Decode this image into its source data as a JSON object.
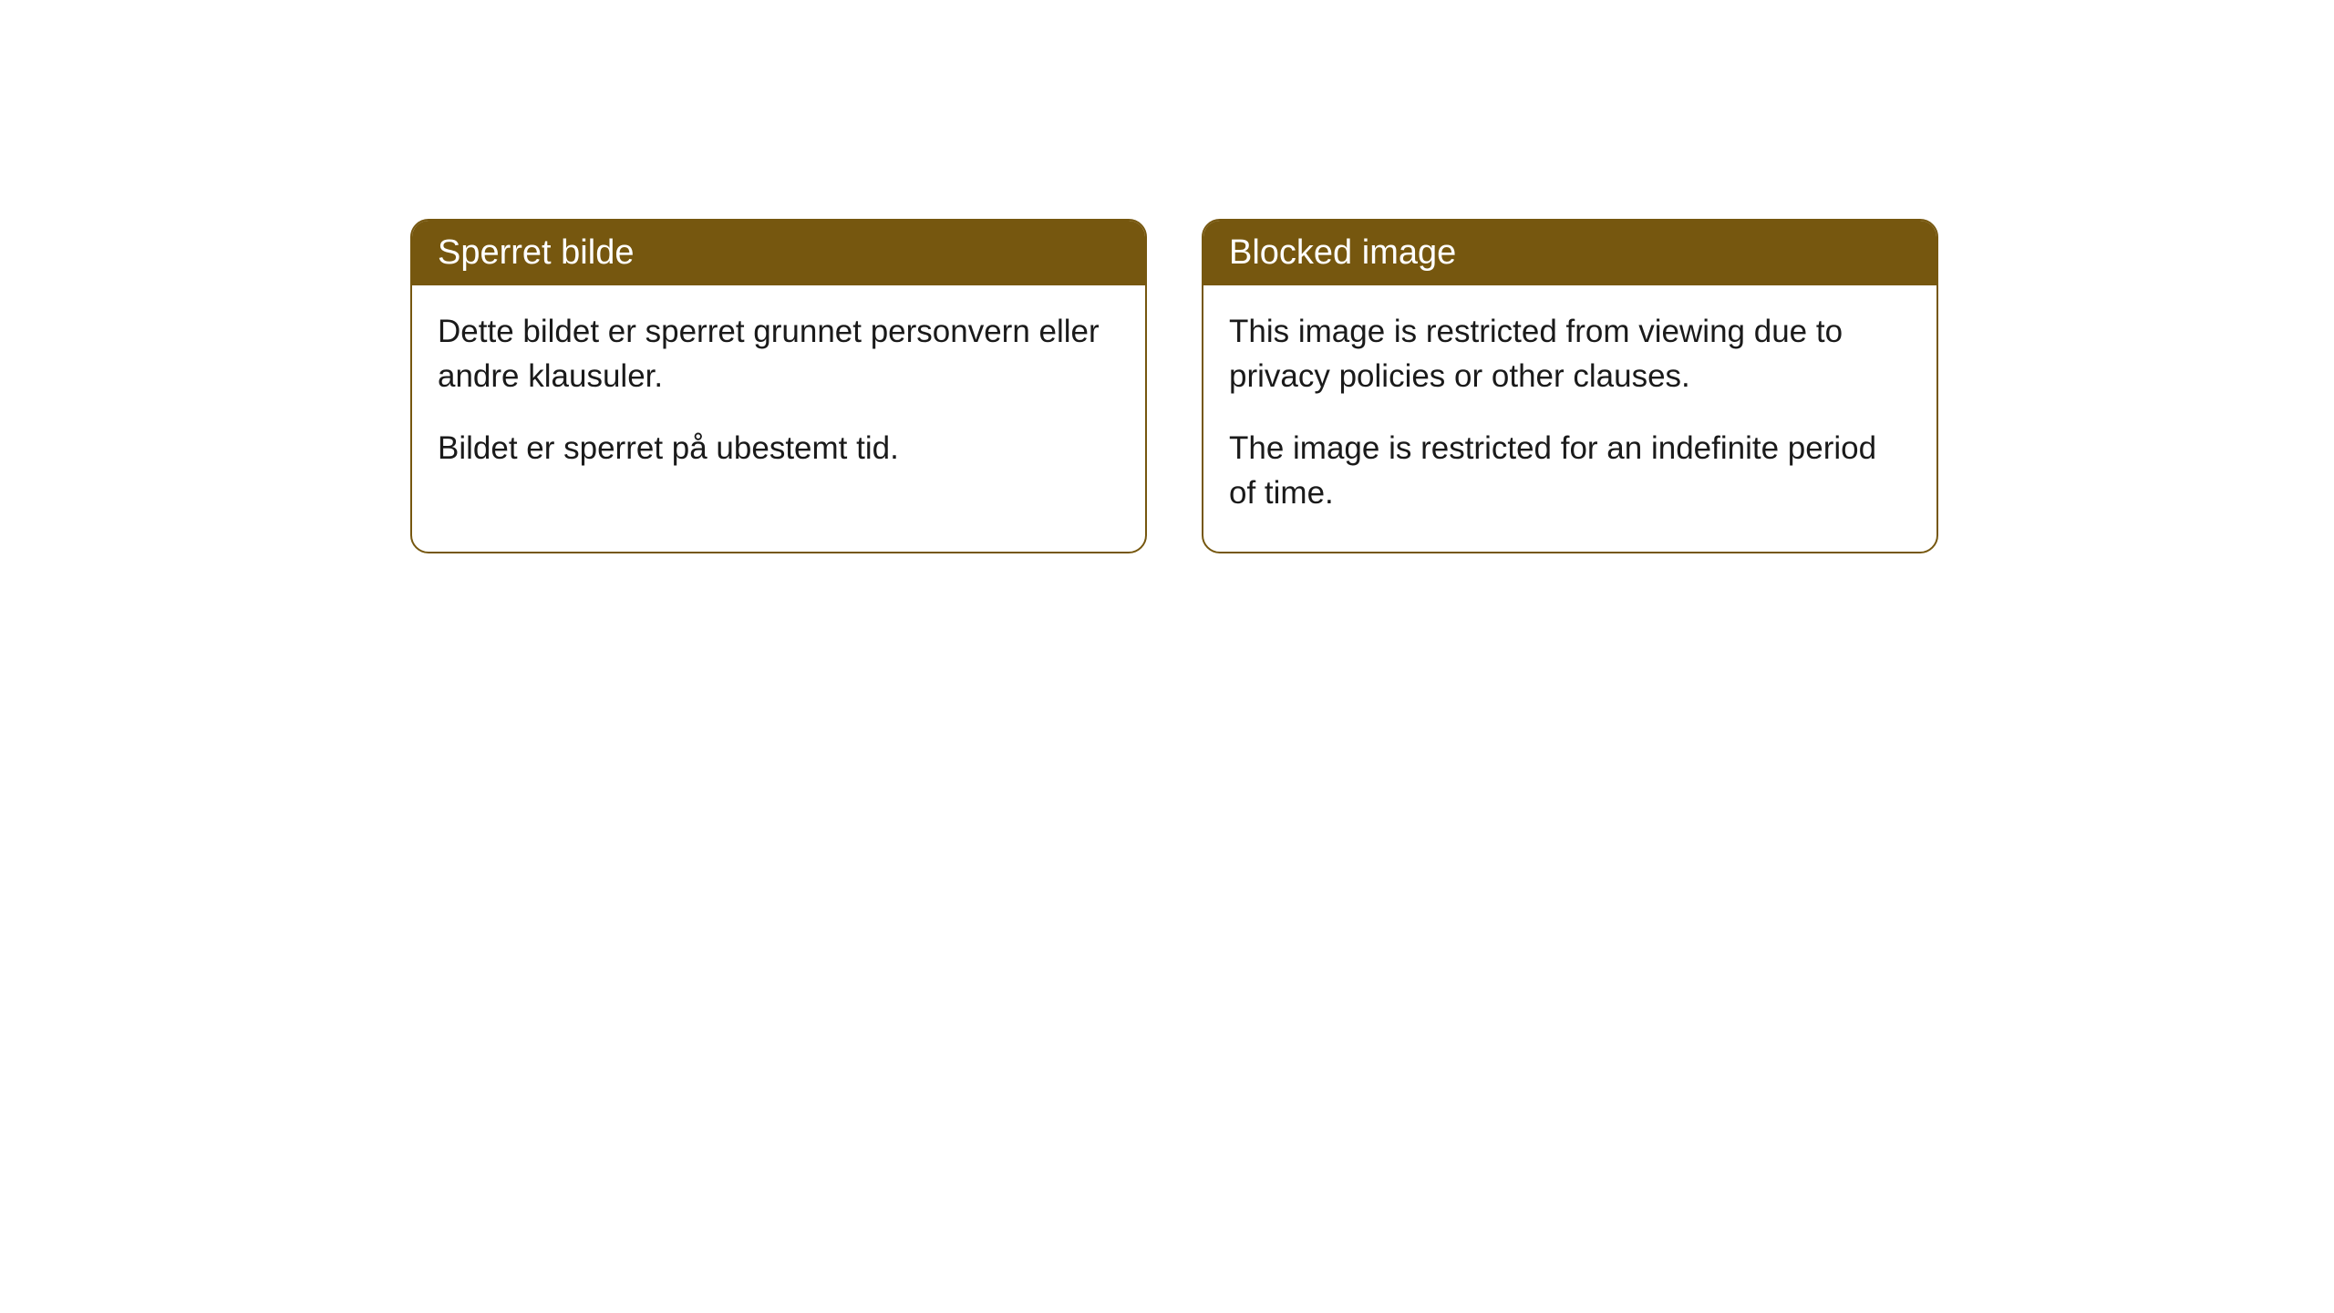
{
  "cards": [
    {
      "title": "Sperret bilde",
      "paragraph1": "Dette bildet er sperret grunnet personvern eller andre klausuler.",
      "paragraph2": "Bildet er sperret på ubestemt tid."
    },
    {
      "title": "Blocked image",
      "paragraph1": "This image is restricted from viewing due to privacy policies or other clauses.",
      "paragraph2": "The image is restricted for an indefinite period of time."
    }
  ],
  "styling": {
    "header_background": "#76570f",
    "header_text_color": "#ffffff",
    "border_color": "#76570f",
    "body_text_color": "#1a1a1a",
    "page_background": "#ffffff",
    "border_radius": 20,
    "header_fontsize": 38,
    "body_fontsize": 35
  }
}
